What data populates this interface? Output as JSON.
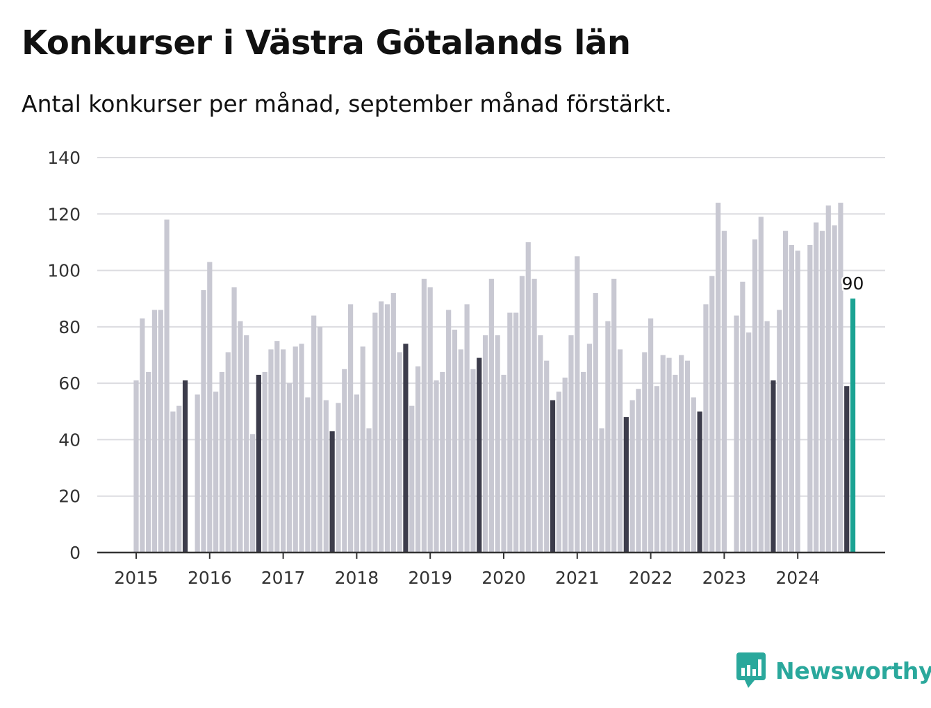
{
  "header": {
    "title": "Konkurser i Västra Götalands län",
    "subtitle": "Antal konkurser per månad, september månad förstärkt."
  },
  "brand": {
    "name": "Newsworthy",
    "icon": "bar-chart-speech-bubble-icon",
    "color": "#2aa89c"
  },
  "colors": {
    "bar_default": "#c8c8d2",
    "bar_september": "#3c3c4b",
    "bar_latest": "#1ba393",
    "grid": "#dcdce0",
    "axis": "#333333"
  },
  "chart_data": {
    "type": "bar",
    "title": "Konkurser i Västra Götalands län",
    "subtitle": "Antal konkurser per månad, september månad förstärkt.",
    "xlabel": "",
    "ylabel": "",
    "ylim": [
      0,
      140
    ],
    "yticks": [
      0,
      20,
      40,
      60,
      80,
      100,
      120,
      140
    ],
    "xticks": [
      "2015",
      "2016",
      "2017",
      "2018",
      "2019",
      "2020",
      "2021",
      "2022",
      "2023",
      "2024"
    ],
    "grid": true,
    "start": "2015-01",
    "highlight_month": "september",
    "latest_label": "90",
    "series": [
      {
        "values": [
          61,
          83,
          64,
          86,
          86,
          118,
          50,
          52,
          61,
          0,
          56,
          93,
          103,
          57,
          64,
          71,
          94,
          82,
          77,
          42,
          63,
          64,
          72,
          75,
          72,
          60,
          73,
          74,
          55,
          84,
          80,
          54,
          43,
          53,
          65,
          88,
          56,
          73,
          44,
          85,
          89,
          88,
          92,
          71,
          74,
          52,
          66,
          97,
          94,
          61,
          64,
          86,
          79,
          72,
          88,
          65,
          69,
          77,
          97,
          77,
          63,
          85,
          85,
          98,
          110,
          97,
          77,
          68,
          54,
          57,
          62,
          77,
          105,
          64,
          74,
          92,
          44,
          82,
          97,
          72,
          48,
          54,
          58,
          71,
          83,
          59,
          70,
          69,
          63,
          70,
          68,
          55,
          50,
          88,
          98,
          124,
          114,
          0,
          84,
          96,
          78,
          111,
          119,
          82,
          61,
          86,
          114,
          109,
          107,
          0,
          109,
          117,
          114,
          123,
          116,
          124,
          59,
          90
        ]
      }
    ]
  }
}
